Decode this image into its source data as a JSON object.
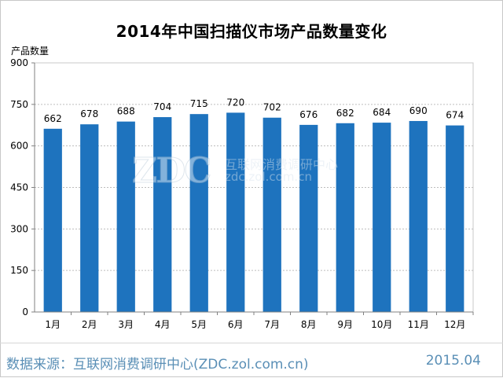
{
  "chart_data": {
    "type": "bar",
    "title": "2014年中国扫描仪市场产品数量变化",
    "ylabel": "产品数量",
    "xlabel": "",
    "categories": [
      "1月",
      "2月",
      "3月",
      "4月",
      "5月",
      "6月",
      "7月",
      "8月",
      "9月",
      "10月",
      "11月",
      "12月"
    ],
    "values": [
      662,
      678,
      688,
      704,
      715,
      720,
      702,
      676,
      682,
      684,
      690,
      674
    ],
    "ylim": [
      0,
      900
    ],
    "yticks": [
      "0",
      "150",
      "300",
      "450",
      "600",
      "750",
      "900"
    ],
    "grid": true,
    "legend": "none",
    "bar_color": "#1e73be"
  },
  "watermark": {
    "logo": "ZDC",
    "line1": "互联网消费调研中心",
    "line2": "zdc.zol.com.cn"
  },
  "footer": {
    "source": "数据来源：互联网消费调研中心(ZDC.zol.com.cn)",
    "date": "2015.04"
  }
}
